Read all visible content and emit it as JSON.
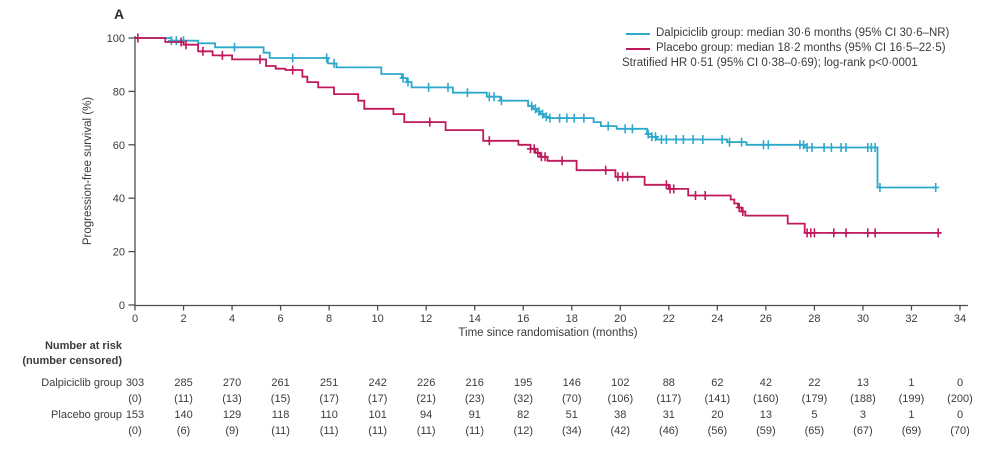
{
  "panel_label": "A",
  "colors": {
    "dalpiciclib": "#2fa9cb",
    "placebo": "#c0195c",
    "text": "#3b3b3b",
    "axis": "#4d4d4d"
  },
  "legend": {
    "entries": [
      {
        "label": "Dalpiciclib group: median 30·6 months (95% CI 30·6–NR)",
        "color": "#2fa9cb"
      },
      {
        "label": "Placebo group: median 18·2 months (95% CI 16·5–22·5)",
        "color": "#c0195c"
      }
    ],
    "note": "Stratified HR 0·51 (95% CI 0·38–0·69); log-rank p<0·0001"
  },
  "chart_data": {
    "type": "line",
    "subtype": "kaplan-meier-step",
    "xlabel": "Time since randomisation (months)",
    "ylabel": "Progression-free survival (%)",
    "xlim": [
      0,
      34
    ],
    "ylim": [
      0,
      100
    ],
    "xticks": [
      0,
      2,
      4,
      6,
      8,
      10,
      12,
      14,
      16,
      18,
      20,
      22,
      24,
      26,
      28,
      30,
      32,
      34
    ],
    "yticks": [
      0,
      20,
      40,
      60,
      80,
      100
    ],
    "grid": false,
    "legend_position": "top-right",
    "series": [
      {
        "name": "Dalpiciclib group",
        "color": "#2fa9cb",
        "end": 33.05,
        "steps": [
          [
            0,
            100
          ],
          [
            1.5,
            99
          ],
          [
            2.6,
            98
          ],
          [
            3.3,
            96.5
          ],
          [
            5.3,
            94.5
          ],
          [
            5.55,
            92.5
          ],
          [
            7.95,
            90.5
          ],
          [
            8.3,
            89
          ],
          [
            10.15,
            86.5
          ],
          [
            11.0,
            85
          ],
          [
            11.2,
            83.5
          ],
          [
            11.4,
            81.5
          ],
          [
            13.1,
            79.5
          ],
          [
            14.5,
            78
          ],
          [
            15.05,
            76.5
          ],
          [
            16.2,
            74.5
          ],
          [
            16.4,
            73.5
          ],
          [
            16.55,
            72.5
          ],
          [
            16.7,
            71.5
          ],
          [
            16.85,
            70.5
          ],
          [
            17.05,
            70
          ],
          [
            18.9,
            68.5
          ],
          [
            19.2,
            67
          ],
          [
            19.85,
            66
          ],
          [
            21.1,
            64
          ],
          [
            21.3,
            63
          ],
          [
            21.5,
            62
          ],
          [
            24.4,
            61
          ],
          [
            25.2,
            60
          ],
          [
            27.6,
            59
          ],
          [
            30.6,
            44
          ]
        ],
        "censor_times": [
          1.5,
          1.7,
          2.0,
          4.1,
          6.5,
          7.9,
          8.2,
          11.05,
          11.25,
          12.1,
          12.9,
          13.7,
          14.6,
          14.8,
          15.1,
          16.35,
          16.5,
          16.65,
          16.8,
          16.95,
          17.1,
          17.5,
          17.8,
          18.1,
          18.5,
          19.5,
          20.2,
          20.5,
          21.15,
          21.3,
          21.45,
          21.7,
          21.9,
          22.3,
          22.6,
          23.0,
          23.4,
          24.2,
          24.5,
          25.0,
          25.9,
          26.1,
          27.4,
          27.55,
          27.7,
          27.9,
          28.4,
          28.7,
          29.1,
          29.3,
          30.2,
          30.35,
          30.5,
          30.7,
          33.0
        ]
      },
      {
        "name": "Placebo group",
        "color": "#c0195c",
        "end": 33.2,
        "steps": [
          [
            0,
            100
          ],
          [
            1.25,
            98.5
          ],
          [
            2.0,
            97.5
          ],
          [
            2.6,
            95
          ],
          [
            3.2,
            93.5
          ],
          [
            4.0,
            92
          ],
          [
            5.4,
            89.5
          ],
          [
            5.8,
            88.5
          ],
          [
            6.2,
            88
          ],
          [
            6.9,
            85.5
          ],
          [
            7.1,
            83.5
          ],
          [
            7.55,
            81.5
          ],
          [
            8.2,
            79
          ],
          [
            9.2,
            76.5
          ],
          [
            9.45,
            73.5
          ],
          [
            10.65,
            71.5
          ],
          [
            11.1,
            68.5
          ],
          [
            12.8,
            65.5
          ],
          [
            14.35,
            61.5
          ],
          [
            15.8,
            60
          ],
          [
            16.3,
            58.5
          ],
          [
            16.5,
            57
          ],
          [
            16.7,
            55.5
          ],
          [
            17.0,
            54
          ],
          [
            18.2,
            50.5
          ],
          [
            19.8,
            48
          ],
          [
            21.0,
            45
          ],
          [
            22.0,
            43.5
          ],
          [
            22.8,
            41
          ],
          [
            24.55,
            39.5
          ],
          [
            24.7,
            38
          ],
          [
            24.85,
            36.5
          ],
          [
            25.0,
            35
          ],
          [
            25.15,
            33.5
          ],
          [
            26.9,
            30.5
          ],
          [
            27.6,
            27
          ]
        ],
        "censor_times": [
          0.12,
          1.9,
          2.1,
          2.8,
          3.6,
          5.15,
          6.5,
          12.15,
          14.6,
          16.3,
          16.45,
          16.6,
          16.75,
          16.9,
          17.6,
          19.4,
          19.9,
          20.1,
          20.3,
          21.9,
          22.05,
          22.2,
          23.1,
          23.5,
          24.9,
          25.05,
          27.7,
          27.85,
          28.0,
          28.8,
          29.3,
          30.2,
          30.5,
          33.1
        ]
      }
    ]
  },
  "risk_table": {
    "header_line1": "Number at risk",
    "header_line2": "(number censored)",
    "time_points": [
      0,
      2,
      4,
      6,
      8,
      10,
      12,
      14,
      16,
      18,
      20,
      22,
      24,
      26,
      28,
      30,
      32,
      34
    ],
    "rows": [
      {
        "label": "Dalpiciclib group",
        "at_risk": [
          303,
          285,
          270,
          261,
          251,
          242,
          226,
          216,
          195,
          146,
          102,
          88,
          62,
          42,
          22,
          13,
          1,
          0
        ],
        "censored": [
          "(0)",
          "(11)",
          "(13)",
          "(15)",
          "(17)",
          "(17)",
          "(21)",
          "(23)",
          "(32)",
          "(70)",
          "(106)",
          "(117)",
          "(141)",
          "(160)",
          "(179)",
          "(188)",
          "(199)",
          "(200)"
        ]
      },
      {
        "label": "Placebo group",
        "at_risk": [
          153,
          140,
          129,
          118,
          110,
          101,
          94,
          91,
          82,
          51,
          38,
          31,
          20,
          13,
          5,
          3,
          1,
          0
        ],
        "censored": [
          "(0)",
          "(6)",
          "(9)",
          "(11)",
          "(11)",
          "(11)",
          "(11)",
          "(11)",
          "(12)",
          "(34)",
          "(42)",
          "(46)",
          "(56)",
          "(59)",
          "(65)",
          "(67)",
          "(69)",
          "(70)"
        ]
      }
    ]
  }
}
